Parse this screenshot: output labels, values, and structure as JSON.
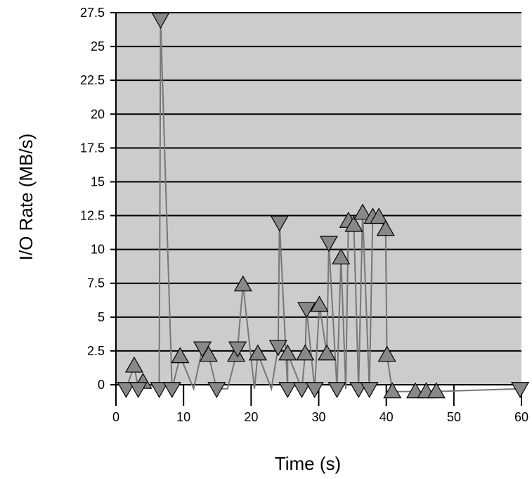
{
  "chart_data": {
    "type": "line",
    "title": "",
    "xlabel": "Time (s)",
    "ylabel": "I/O Rate (MB/s)",
    "xlim": [
      0,
      60
    ],
    "ylim": [
      0,
      27.5
    ],
    "x_ticks": [
      0,
      10,
      20,
      30,
      40,
      50,
      60
    ],
    "y_ticks": [
      0,
      2.5,
      5,
      7.5,
      10,
      12.5,
      15,
      17.5,
      20,
      22.5,
      25,
      27.5
    ],
    "y_tick_labels": [
      "0",
      "2.5",
      "5",
      "7.5",
      "10",
      "12.5",
      "15",
      "17.5",
      "20",
      "22.5",
      "25",
      "27.5"
    ],
    "grid": "horizontal",
    "plot_background": "#cccccc",
    "series": [
      {
        "marker": "triangle-up",
        "color": "#888888",
        "points": [
          [
            2.7,
            1.4
          ],
          [
            4.0,
            0.2
          ],
          [
            9.5,
            2.1
          ],
          [
            13.7,
            2.2
          ],
          [
            17.8,
            2.2
          ],
          [
            18.8,
            7.4
          ],
          [
            21.0,
            2.3
          ],
          [
            25.4,
            2.3
          ],
          [
            28.0,
            2.3
          ],
          [
            30.1,
            5.9
          ],
          [
            31.2,
            2.3
          ],
          [
            33.3,
            9.4
          ],
          [
            34.4,
            12.1
          ],
          [
            35.2,
            11.8
          ],
          [
            36.5,
            12.7
          ],
          [
            38.0,
            12.4
          ],
          [
            38.9,
            12.4
          ],
          [
            39.9,
            11.5
          ],
          [
            40.1,
            2.2
          ],
          [
            40.9,
            -0.5
          ],
          [
            44.3,
            -0.5
          ],
          [
            45.9,
            -0.5
          ],
          [
            47.4,
            -0.5
          ]
        ]
      },
      {
        "marker": "triangle-down",
        "color": "#888888",
        "points": [
          [
            1.5,
            -0.3
          ],
          [
            3.3,
            -0.3
          ],
          [
            6.6,
            27.0
          ],
          [
            6.4,
            -0.3
          ],
          [
            8.3,
            -0.3
          ],
          [
            12.8,
            2.7
          ],
          [
            14.9,
            -0.3
          ],
          [
            18.0,
            2.7
          ],
          [
            24.2,
            12.0
          ],
          [
            24.0,
            2.8
          ],
          [
            25.4,
            -0.3
          ],
          [
            27.5,
            -0.3
          ],
          [
            28.2,
            5.6
          ],
          [
            29.4,
            -0.3
          ],
          [
            31.5,
            10.5
          ],
          [
            32.7,
            -0.3
          ],
          [
            35.9,
            -0.3
          ],
          [
            37.5,
            -0.3
          ],
          [
            59.8,
            -0.3
          ]
        ]
      }
    ],
    "connecting_line": [
      [
        1.5,
        -0.3
      ],
      [
        2.7,
        1.4
      ],
      [
        3.3,
        -0.3
      ],
      [
        4.0,
        0.2
      ],
      [
        6.4,
        -0.3
      ],
      [
        6.6,
        27.0
      ],
      [
        8.3,
        -0.3
      ],
      [
        9.5,
        2.1
      ],
      [
        11.5,
        -0.3
      ],
      [
        12.8,
        2.7
      ],
      [
        13.7,
        2.2
      ],
      [
        14.9,
        -0.3
      ],
      [
        16.5,
        -0.3
      ],
      [
        17.8,
        2.2
      ],
      [
        18.0,
        2.7
      ],
      [
        18.8,
        7.4
      ],
      [
        20.5,
        -0.3
      ],
      [
        21.0,
        2.3
      ],
      [
        23.0,
        -0.3
      ],
      [
        24.0,
        2.8
      ],
      [
        24.2,
        12.0
      ],
      [
        25.4,
        -0.3
      ],
      [
        25.4,
        2.3
      ],
      [
        27.5,
        -0.3
      ],
      [
        28.0,
        2.3
      ],
      [
        28.2,
        5.6
      ],
      [
        29.4,
        -0.3
      ],
      [
        30.1,
        5.9
      ],
      [
        31.2,
        2.3
      ],
      [
        31.5,
        10.5
      ],
      [
        32.7,
        -0.3
      ],
      [
        33.3,
        9.4
      ],
      [
        34.0,
        -0.3
      ],
      [
        34.4,
        12.1
      ],
      [
        35.2,
        11.8
      ],
      [
        35.9,
        -0.3
      ],
      [
        36.5,
        12.7
      ],
      [
        37.5,
        -0.3
      ],
      [
        38.0,
        12.4
      ],
      [
        38.9,
        12.4
      ],
      [
        39.9,
        11.5
      ],
      [
        40.1,
        2.2
      ],
      [
        40.9,
        -0.5
      ],
      [
        44.3,
        -0.5
      ],
      [
        45.9,
        -0.5
      ],
      [
        47.4,
        -0.5
      ],
      [
        59.8,
        -0.3
      ]
    ]
  }
}
